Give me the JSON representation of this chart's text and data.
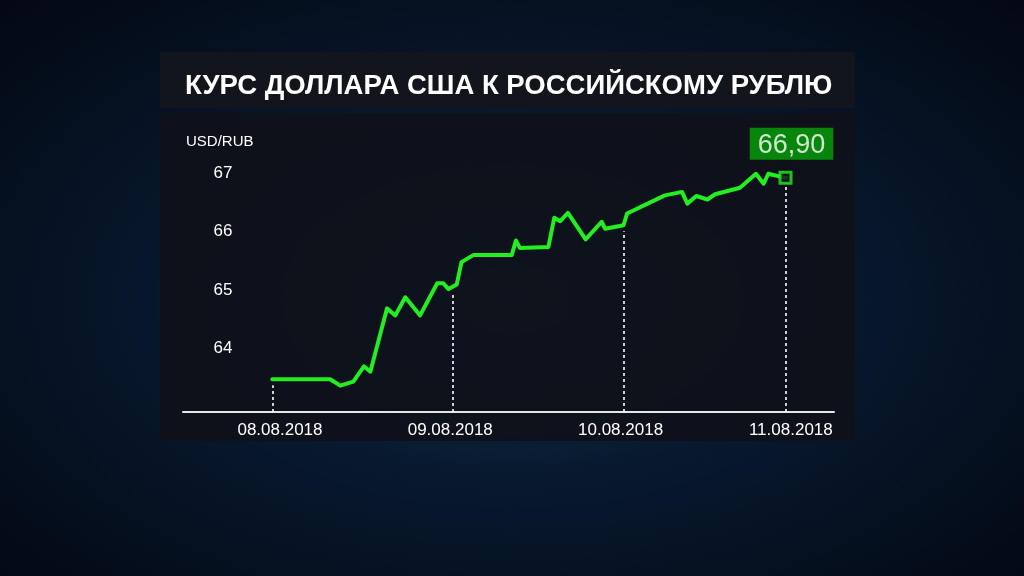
{
  "chart_data": {
    "type": "line",
    "title": "КУРС ДОЛЛАРА США К РОССИЙСКОМУ РУБЛЮ",
    "ylabel": "USD/RUB",
    "xlim": [
      "2018-08-07T10:20",
      "2018-08-11T06:05"
    ],
    "xticks": [
      {
        "value": "2018-08-08",
        "label": "08.08.2018"
      },
      {
        "value": "2018-08-09",
        "label": "09.08.2018"
      },
      {
        "value": "2018-08-10",
        "label": "10.08.2018"
      },
      {
        "value": "2018-08-11",
        "label": "11.08.2018"
      }
    ],
    "ylim": [
      62.9,
      67
    ],
    "yticks": [
      64,
      65,
      66,
      67
    ],
    "series": [
      {
        "color": "#22ee22",
        "x": [
          "2018-08-07T22:55",
          "2018-08-08T07:05",
          "2018-08-08T08:30",
          "2018-08-08T10:20",
          "2018-08-08T11:50",
          "2018-08-08T12:45",
          "2018-08-08T15:05",
          "2018-08-08T16:15",
          "2018-08-08T17:40",
          "2018-08-08T19:45",
          "2018-08-08T22:10",
          "2018-08-08T23:00",
          "2018-08-08T23:45",
          "2018-08-09T00:55",
          "2018-08-09T01:35",
          "2018-08-09T03:15",
          "2018-08-09T08:40",
          "2018-08-09T09:15",
          "2018-08-09T09:50",
          "2018-08-09T13:50",
          "2018-08-09T14:40",
          "2018-08-09T15:30",
          "2018-08-09T16:35",
          "2018-08-09T19:05",
          "2018-08-09T21:20",
          "2018-08-09T21:50",
          "2018-08-10T00:25",
          "2018-08-10T00:55",
          "2018-08-10T06:15",
          "2018-08-10T08:40",
          "2018-08-10T09:25",
          "2018-08-10T10:40",
          "2018-08-10T12:15",
          "2018-08-10T13:20",
          "2018-08-10T16:50",
          "2018-08-10T19:05",
          "2018-08-10T20:10",
          "2018-08-10T20:50",
          "2018-08-10T23:15"
        ],
        "values": [
          63.46,
          63.46,
          63.35,
          63.42,
          63.68,
          63.59,
          64.67,
          64.55,
          64.86,
          64.55,
          65.1,
          65.1,
          65.0,
          65.08,
          65.46,
          65.58,
          65.58,
          65.83,
          65.7,
          65.72,
          66.22,
          66.16,
          66.3,
          65.85,
          66.15,
          66.03,
          66.09,
          66.29,
          66.6,
          66.66,
          66.46,
          66.59,
          66.53,
          66.62,
          66.73,
          66.97,
          66.8,
          66.97,
          66.9
        ]
      },
      {
        "type": "scatter",
        "color": "#22ee22",
        "marker": "square",
        "x": [
          "2018-08-10T23:15"
        ],
        "values": [
          66.9
        ],
        "value_labels": [
          "66,90"
        ]
      }
    ],
    "ref_lines": [
      {
        "axis": "x",
        "value": "2018-08-07T22:55",
        "color": "#ffffff",
        "line_style": "dotted"
      },
      {
        "axis": "x",
        "value": "2018-08-09T00:25",
        "color": "#ffffff",
        "line_style": "dotted"
      },
      {
        "axis": "x",
        "value": "2018-08-10T00:25",
        "color": "#ffffff",
        "line_style": "dotted"
      },
      {
        "axis": "x",
        "value": "2018-08-10T23:15",
        "color": "#ffffff",
        "line_style": "dotted"
      }
    ]
  }
}
